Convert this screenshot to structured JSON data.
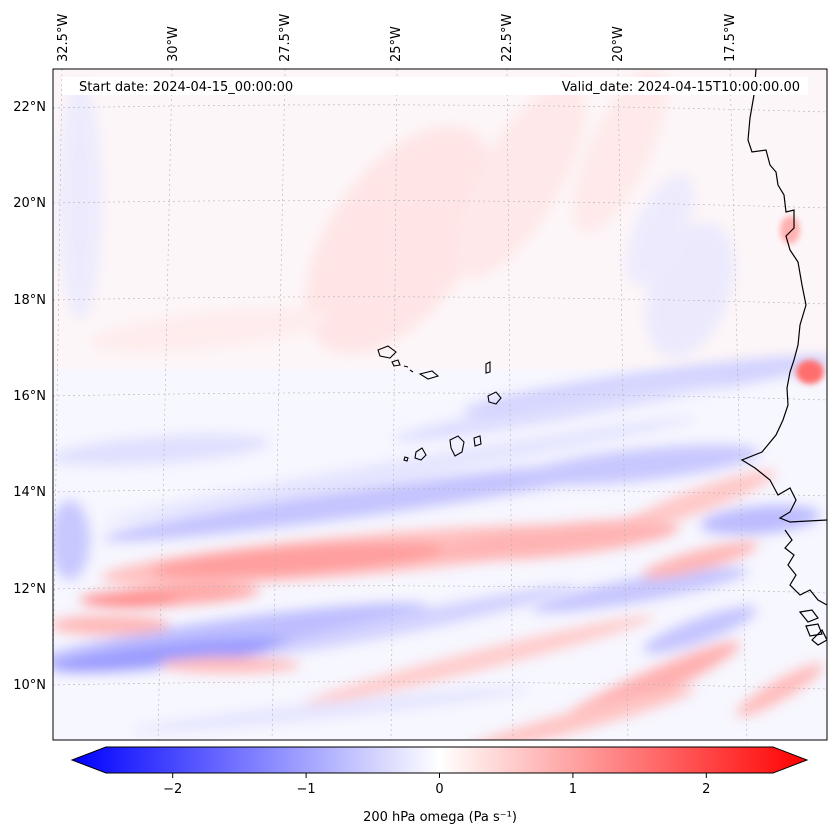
{
  "header": {
    "start_date": "Start date: 2024-04-15_00:00:00",
    "valid_date": "Valid_date: 2024-04-15T10:00:00.00"
  },
  "map": {
    "lon_labels": [
      "32.5°W",
      "30°W",
      "27.5°W",
      "25°W",
      "22.5°W",
      "20°W",
      "17.5°W"
    ],
    "lat_labels": [
      "22°N",
      "20°N",
      "18°N",
      "16°N",
      "14°N",
      "12°N",
      "10°N"
    ],
    "variable": "200 hPa omega"
  },
  "colorbar": {
    "label": "200 hPa omega (Pa s⁻¹)",
    "ticks": [
      "−2",
      "−1",
      "0",
      "1",
      "2"
    ],
    "tick_values": [
      -2,
      -1,
      0,
      1,
      2
    ],
    "range": [
      -2.6,
      2.6
    ],
    "min_color": "#0000ff",
    "mid_color": "#ffffff",
    "max_color": "#ff0000"
  },
  "colors": {
    "blue": "#3a3aff",
    "red": "#ff3a3a",
    "coast": "#000000"
  }
}
